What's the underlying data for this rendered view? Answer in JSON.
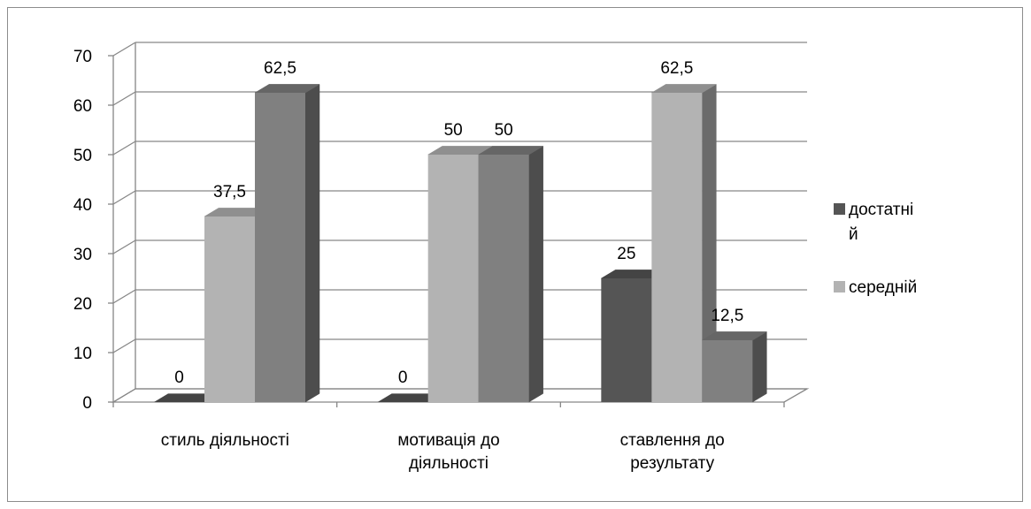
{
  "chart_data": {
    "type": "bar",
    "variant": "3d-clustered-column",
    "categories": [
      [
        "стиль діяльності"
      ],
      [
        "мотивація до",
        "діяльності"
      ],
      [
        "ставлення до",
        "результату"
      ]
    ],
    "series": [
      {
        "name": [
          "достатні",
          "й"
        ],
        "values": [
          0,
          0,
          25
        ],
        "labels": [
          "0",
          "0",
          "25"
        ],
        "color": "#555555"
      },
      {
        "name": [
          "середній"
        ],
        "values": [
          37.5,
          50,
          62.5
        ],
        "labels": [
          "37,5",
          "50",
          "62,5"
        ],
        "color": "#b3b3b3"
      },
      {
        "name": [],
        "values": [
          62.5,
          50,
          12.5
        ],
        "labels": [
          "62,5",
          "50",
          "12,5"
        ],
        "color": "#808080"
      }
    ],
    "ylim": [
      0,
      70
    ],
    "yticks": [
      "0",
      "10",
      "20",
      "30",
      "40",
      "50",
      "60",
      "70"
    ],
    "grid": true,
    "legend": "right"
  }
}
